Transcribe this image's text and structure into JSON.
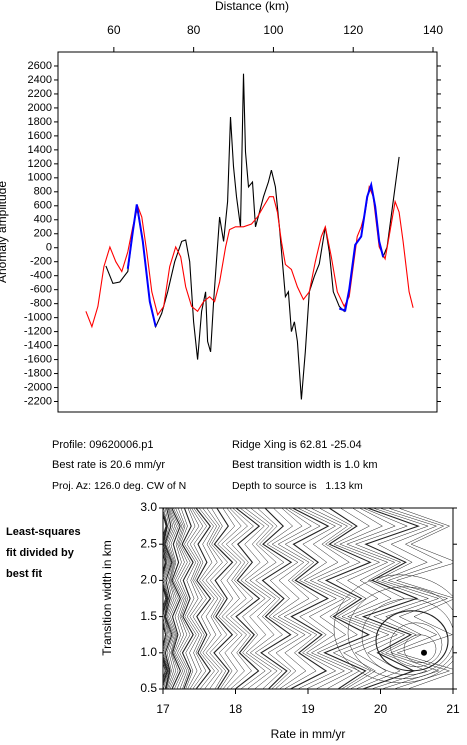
{
  "chart_data": [
    {
      "type": "line",
      "xlabel": "Distance (km)",
      "ylabel": "Anomaly amplitude",
      "xlim": [
        46,
        141
      ],
      "xticks": [
        60,
        80,
        100,
        120,
        140
      ],
      "ylim": [
        -2350,
        2800
      ],
      "yticks": [
        -2200,
        -2000,
        -1800,
        -1600,
        -1400,
        -1200,
        -1000,
        -800,
        -600,
        -400,
        -200,
        0,
        200,
        400,
        600,
        800,
        1000,
        1200,
        1400,
        1600,
        1800,
        2000,
        2200,
        2400,
        2600
      ],
      "series": [
        {
          "color": "#000000",
          "x": [
            58,
            59.75,
            61.5,
            63.5,
            64.75,
            65.75,
            67.25,
            69,
            70.5,
            72,
            73.5,
            75.25,
            77,
            78,
            79,
            80,
            81,
            82,
            83,
            83.5,
            84.25,
            85,
            86.5,
            87.5,
            88.5,
            89.25,
            90,
            90.75,
            91.75,
            92.5,
            93,
            93.75,
            94.75,
            95.5,
            96.5,
            97.5,
            98.75,
            99.5,
            100.5,
            101.5,
            102.25,
            103,
            103.75,
            104.5,
            105.25,
            106,
            107,
            108,
            109,
            110.25,
            111.5,
            113,
            114,
            115,
            116.5,
            117.75,
            119,
            120.5,
            122,
            123.5,
            124.5,
            125.5,
            126.5,
            127.5,
            128.5,
            129.5,
            130.5,
            131.5
          ],
          "values": [
            -260,
            -510,
            -490,
            -340,
            230,
            590,
            90,
            -770,
            -1130,
            -940,
            -630,
            -200,
            90,
            110,
            -200,
            -1060,
            -1600,
            -910,
            -630,
            -1340,
            -1490,
            -770,
            440,
            90,
            660,
            1870,
            1160,
            730,
            300,
            2490,
            1370,
            870,
            940,
            300,
            510,
            730,
            940,
            1110,
            870,
            300,
            -200,
            -700,
            -630,
            -1200,
            -1060,
            -1340,
            -2170,
            -1490,
            -630,
            -410,
            -230,
            300,
            -60,
            -630,
            -840,
            -910,
            -630,
            40,
            160,
            730,
            870,
            590,
            90,
            -130,
            10,
            440,
            870,
            1300
          ]
        },
        {
          "color": "#ff0000",
          "x": [
            53,
            54.5,
            56,
            57.5,
            59,
            60.5,
            62,
            63.5,
            64.75,
            66,
            67,
            68.25,
            69.5,
            71,
            72.5,
            74,
            75.5,
            76.75,
            78,
            79.5,
            81,
            82.5,
            84,
            85.25,
            86.5,
            88,
            89,
            90.5,
            92.5,
            94.5,
            96,
            97.5,
            99,
            100,
            101,
            102,
            103,
            104.5,
            106,
            107.5,
            109,
            110.5,
            112,
            113,
            114.5,
            116,
            117.75,
            119,
            120,
            121,
            122,
            123,
            124,
            125,
            126.5,
            128,
            129,
            130.5,
            131.5,
            132.5,
            134,
            135
          ],
          "values": [
            -910,
            -1130,
            -840,
            -270,
            10,
            -200,
            -340,
            -60,
            300,
            590,
            440,
            -60,
            -630,
            -960,
            -840,
            -270,
            10,
            -130,
            -560,
            -840,
            -910,
            -770,
            -700,
            -770,
            -490,
            10,
            260,
            300,
            300,
            340,
            440,
            590,
            730,
            730,
            510,
            90,
            -240,
            -310,
            -560,
            -740,
            -630,
            -200,
            160,
            300,
            -130,
            -630,
            -840,
            -700,
            -270,
            160,
            300,
            510,
            870,
            730,
            10,
            -160,
            160,
            660,
            510,
            90,
            -630,
            -860
          ]
        },
        {
          "color": "#0000ff",
          "x": [
            63.5,
            64.75,
            65.75,
            67.25,
            69,
            70.5,
            null,
            116.5,
            118,
            119,
            120.5,
            122,
            123.5,
            124.5,
            125.5,
            126.5,
            127.5
          ],
          "values": [
            -300,
            230,
            620,
            90,
            -770,
            -1130,
            null,
            -870,
            -900,
            -600,
            40,
            160,
            730,
            900,
            590,
            90,
            -130
          ]
        }
      ]
    },
    {
      "type": "contour",
      "xlabel": "Rate in mm/yr",
      "ylabel": "Transition width in km",
      "xlim": [
        17,
        21
      ],
      "xticks": [
        17,
        18,
        19,
        20,
        21
      ],
      "ylim": [
        0.5,
        3.0
      ],
      "yticks": [
        0.5,
        {
          "value": 1,
          "label": "1.0"
        },
        1.5,
        {
          "value": 2,
          "label": "2.0"
        },
        2.5,
        {
          "value": 3,
          "label": "3.0"
        }
      ],
      "note": [
        "Least-squares",
        "fit divided by",
        "best fit"
      ],
      "best_fit": {
        "x": [
          20.6
        ],
        "values": [
          1.0
        ]
      }
    }
  ],
  "info": [
    "Profile: 09620006.p1",
    "Ridge Xing is 62.81 -25.04",
    "Best rate is 20.6 mm/yr",
    "Best transition width is 1.0 km",
    "Proj. Az: 126.0 deg. CW of N",
    "Depth to source is   1.13 km"
  ]
}
